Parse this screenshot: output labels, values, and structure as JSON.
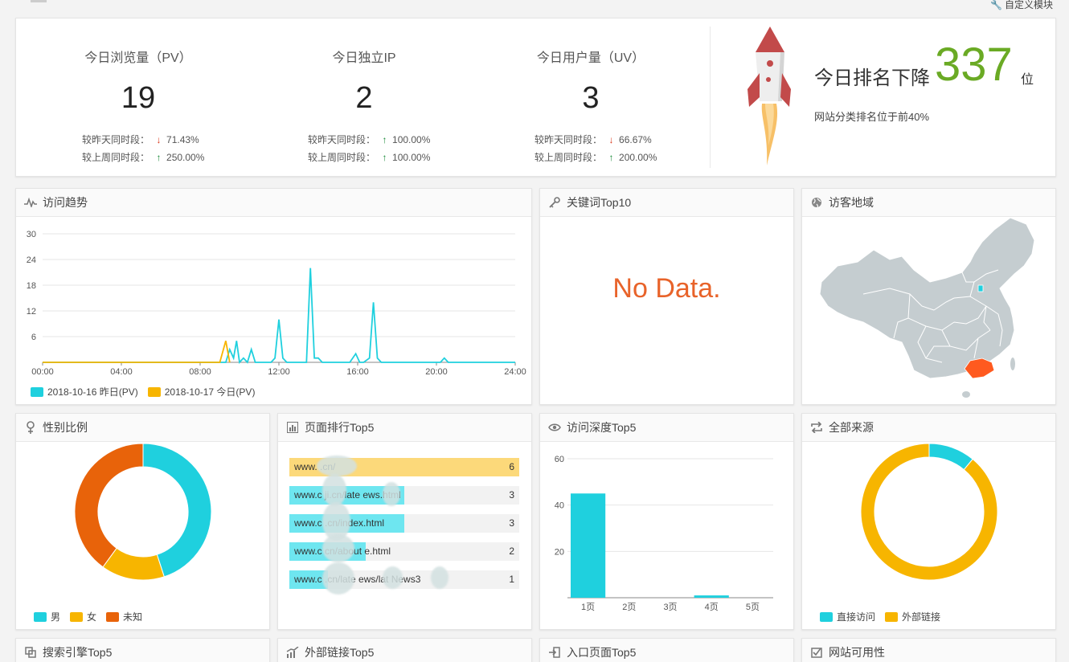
{
  "topbar": {
    "custom_label": "自定义模块"
  },
  "stats": [
    {
      "label": "今日浏览量（PV）",
      "value": "19",
      "yesterday_label": "较昨天同时段：",
      "yesterday_dir": "down",
      "yesterday_pct": "71.43%",
      "lastweek_label": "较上周同时段：",
      "lastweek_dir": "up",
      "lastweek_pct": "250.00%"
    },
    {
      "label": "今日独立IP",
      "value": "2",
      "yesterday_label": "较昨天同时段：",
      "yesterday_dir": "up",
      "yesterday_pct": "100.00%",
      "lastweek_label": "较上周同时段：",
      "lastweek_dir": "up",
      "lastweek_pct": "100.00%"
    },
    {
      "label": "今日用户量（UV）",
      "value": "3",
      "yesterday_label": "较昨天同时段：",
      "yesterday_dir": "down",
      "yesterday_pct": "66.67%",
      "lastweek_label": "较上周同时段：",
      "lastweek_dir": "up",
      "lastweek_pct": "200.00%"
    }
  ],
  "rank": {
    "title": "今日排名下降",
    "number": "337",
    "unit": "位",
    "subtitle": "网站分类排名位于前40%"
  },
  "panels": {
    "trend": "访问趋势",
    "keywords": "关键词Top10",
    "region": "访客地域",
    "gender": "性别比例",
    "pages": "页面排行Top5",
    "depth": "访问深度Top5",
    "sources": "全部来源",
    "search": "搜索引擎Top5",
    "external": "外部链接Top5",
    "entry": "入口页面Top5",
    "availability": "网站可用性"
  },
  "keywords_empty": "No Data.",
  "colors": {
    "cyan": "#1fd0de",
    "orange": "#f7b500",
    "red_orange": "#e8630a",
    "green": "#6aaa24",
    "map_gray": "#c5cdd0",
    "map_highlight": "#ff5a1f"
  },
  "top_pages": [
    {
      "url": "www.        .cn/",
      "count": "6",
      "ratio": 1.0,
      "color": "#fcd97a"
    },
    {
      "url": "www.c     ji.cn/late    ews.html",
      "count": "3",
      "ratio": 0.5,
      "color": "#6ee6f0"
    },
    {
      "url": "www.c        .cn/index.html",
      "count": "3",
      "ratio": 0.5,
      "color": "#6ee6f0"
    },
    {
      "url": "www.c       cn/about    e.html",
      "count": "2",
      "ratio": 0.333,
      "color": "#6ee6f0"
    },
    {
      "url": "www.c       .cn/late    ews/lat    News3",
      "count": "1",
      "ratio": 0.167,
      "color": "#6ee6f0"
    }
  ],
  "chart_data": [
    {
      "type": "line",
      "title": "访问趋势",
      "x_ticks": [
        "00:00",
        "04:00",
        "08:00",
        "12:00",
        "16:00",
        "20:00",
        "24:00"
      ],
      "y_ticks": [
        6,
        12,
        18,
        24,
        30
      ],
      "ylim": [
        0,
        30
      ],
      "xlim": [
        0,
        24
      ],
      "series": [
        {
          "name": "2018-10-16 昨日(PV)",
          "color": "#1fd0de",
          "points": [
            [
              0,
              0
            ],
            [
              9.3,
              0
            ],
            [
              9.5,
              3
            ],
            [
              9.7,
              1
            ],
            [
              9.85,
              5
            ],
            [
              10.0,
              0
            ],
            [
              10.2,
              1
            ],
            [
              10.4,
              0
            ],
            [
              10.6,
              3
            ],
            [
              10.8,
              0
            ],
            [
              11.0,
              0
            ],
            [
              11.6,
              0
            ],
            [
              11.8,
              1
            ],
            [
              12.0,
              10
            ],
            [
              12.2,
              1
            ],
            [
              12.4,
              0
            ],
            [
              13.4,
              0
            ],
            [
              13.6,
              22
            ],
            [
              13.8,
              1
            ],
            [
              14.0,
              1
            ],
            [
              14.2,
              0
            ],
            [
              15.6,
              0
            ],
            [
              15.9,
              2
            ],
            [
              16.1,
              0
            ],
            [
              16.3,
              0
            ],
            [
              16.6,
              1
            ],
            [
              16.8,
              14
            ],
            [
              17.0,
              1
            ],
            [
              17.2,
              0
            ],
            [
              20.2,
              0
            ],
            [
              20.4,
              1
            ],
            [
              20.6,
              0
            ],
            [
              24,
              0
            ]
          ]
        },
        {
          "name": "2018-10-17 今日(PV)",
          "color": "#f7b500",
          "points": [
            [
              0,
              0
            ],
            [
              9.0,
              0
            ],
            [
              9.3,
              5
            ],
            [
              9.5,
              0
            ]
          ]
        }
      ],
      "legend": "bottom-left"
    },
    {
      "type": "pie",
      "title": "性别比例",
      "style": "donut",
      "labels": [
        "男",
        "女",
        "未知"
      ],
      "values": [
        45,
        15,
        40
      ],
      "colors": [
        "#1fd0de",
        "#f7b500",
        "#e8630a"
      ],
      "legend": "bottom-left"
    },
    {
      "type": "bar",
      "title": "访问深度Top5",
      "categories": [
        "1页",
        "2页",
        "3页",
        "4页",
        "5页"
      ],
      "values": [
        45,
        0,
        0,
        1,
        0
      ],
      "color": "#1fd0de",
      "y_ticks": [
        20,
        40,
        60
      ],
      "ylim": [
        0,
        60
      ]
    },
    {
      "type": "pie",
      "title": "全部来源",
      "style": "donut",
      "labels": [
        "直接访问",
        "外部链接"
      ],
      "values": [
        11,
        89
      ],
      "colors": [
        "#1fd0de",
        "#f7b500"
      ],
      "legend": "bottom-left"
    }
  ]
}
